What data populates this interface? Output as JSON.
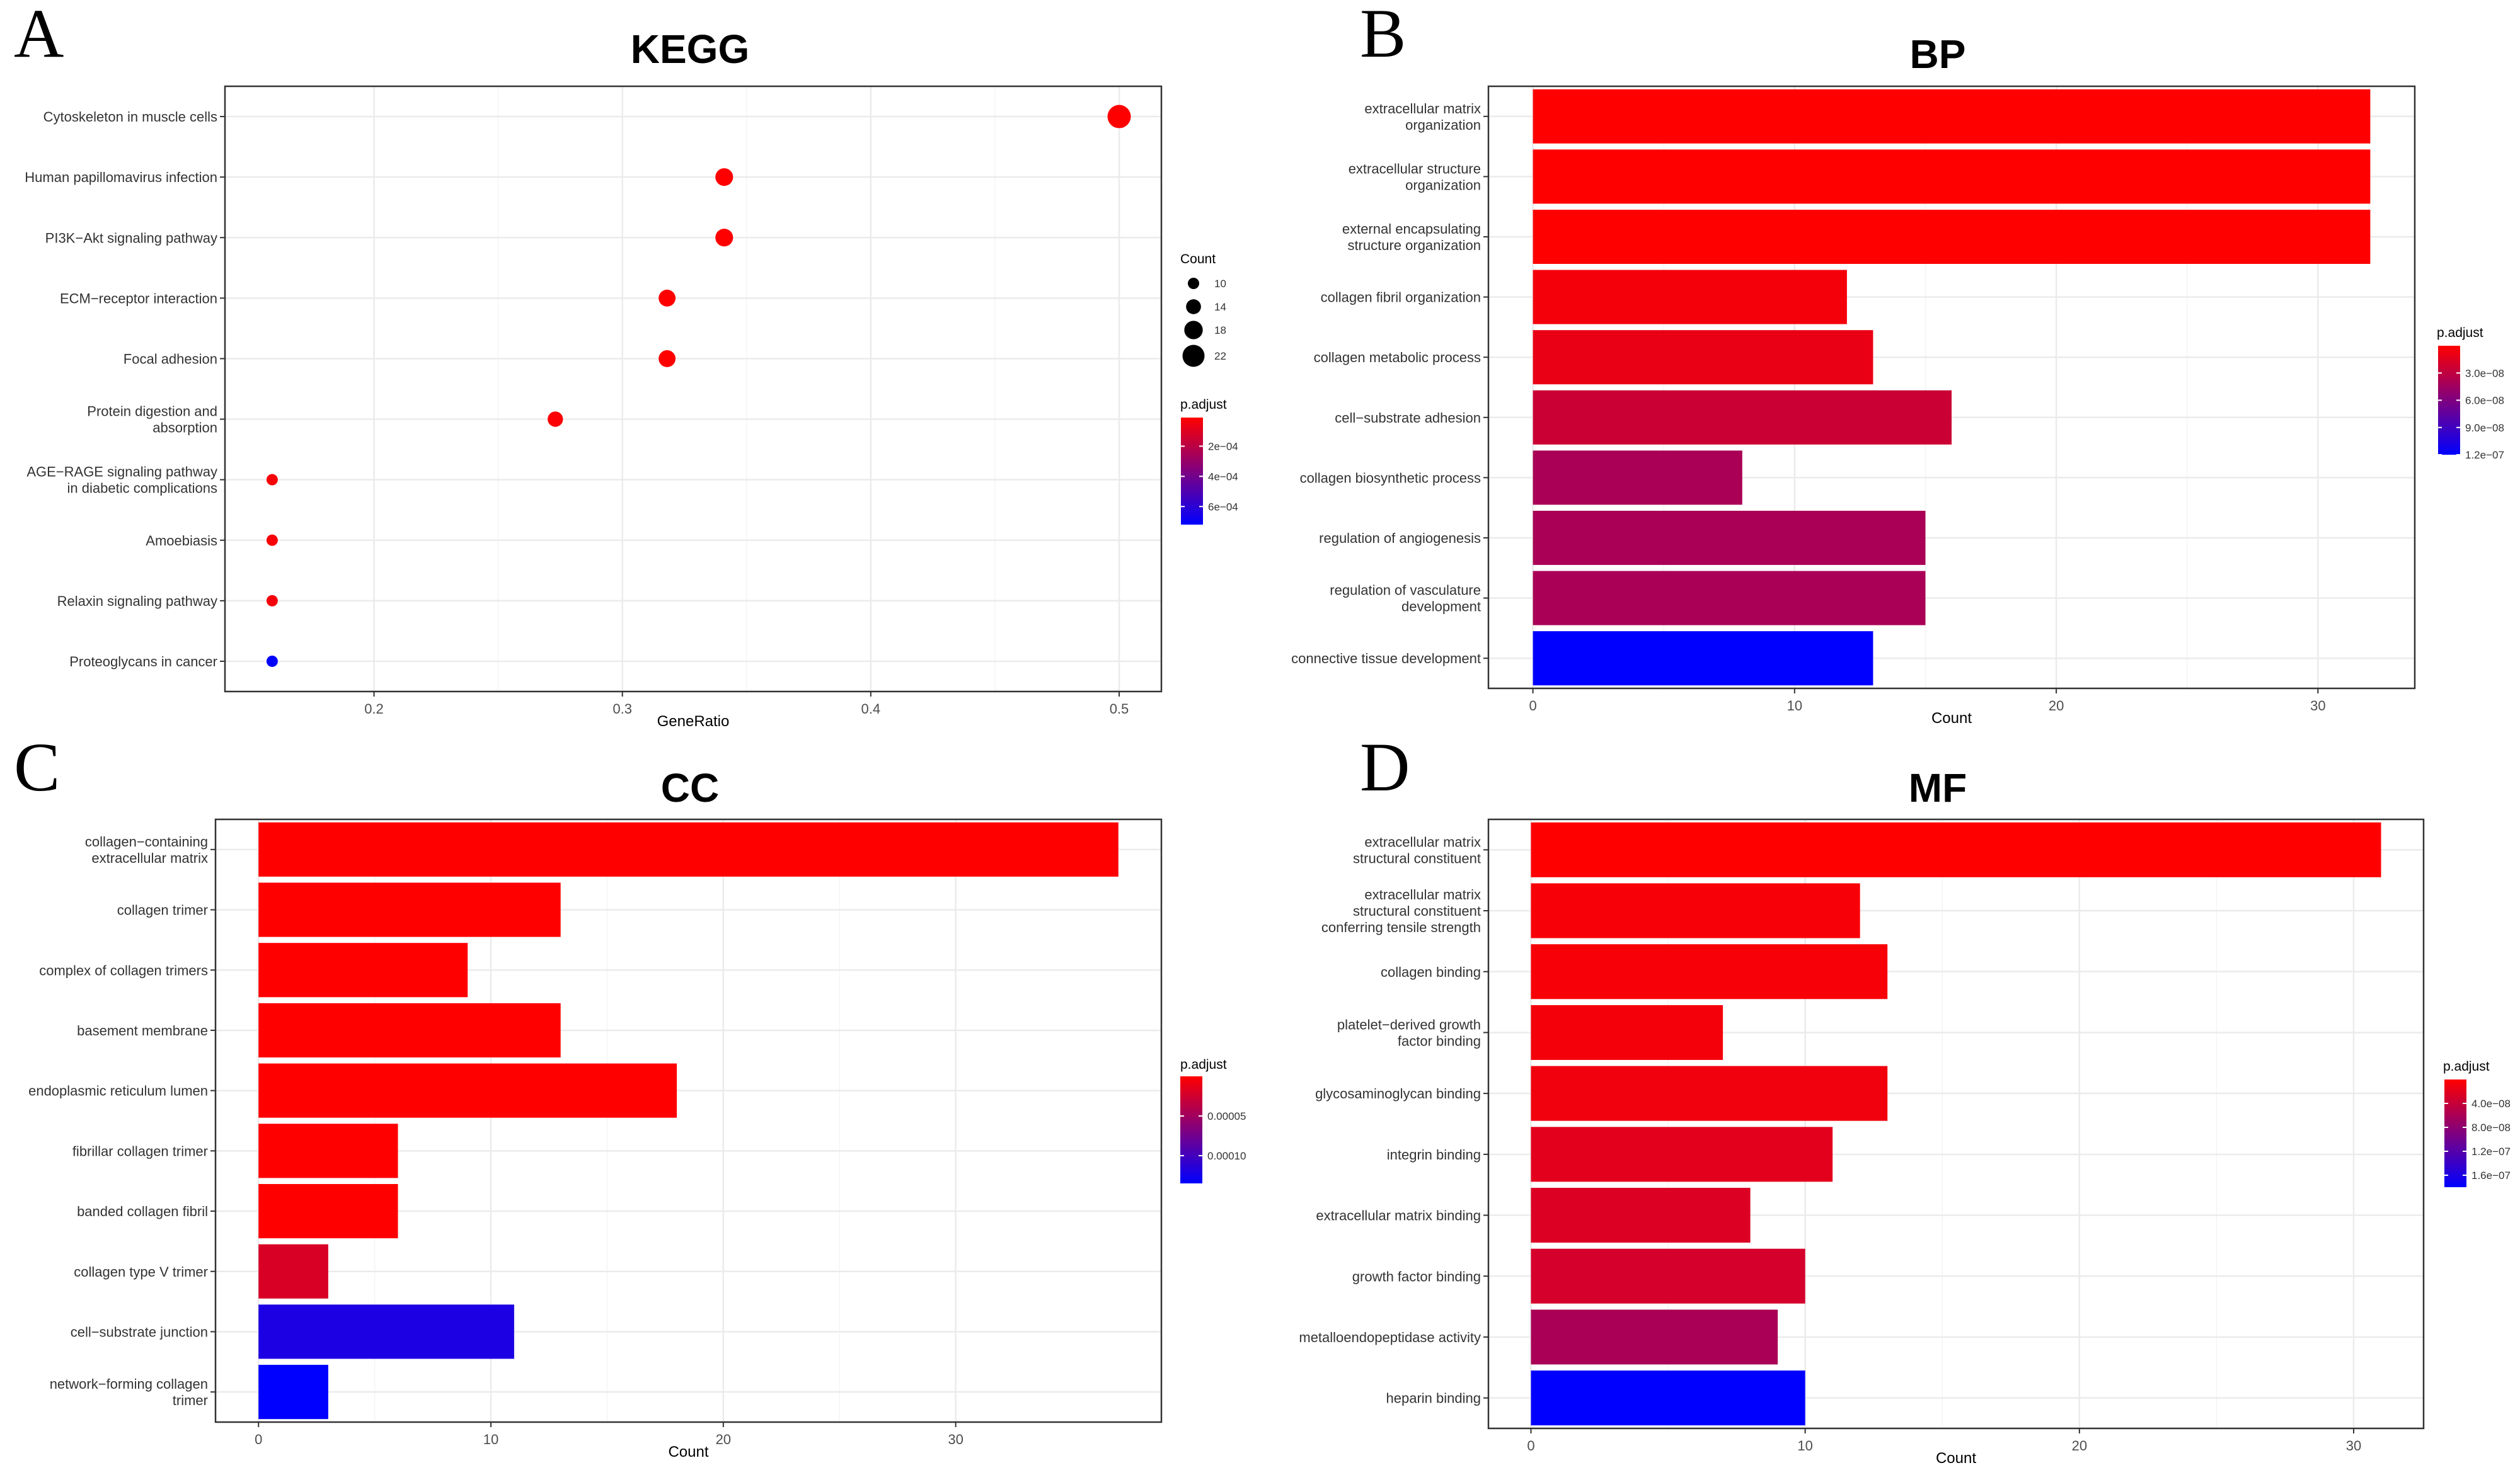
{
  "chart_data": [
    {
      "panel": "A",
      "type": "scatter",
      "title": "KEGG",
      "xlabel": "GeneRatio",
      "ylabel": "",
      "xlim": [
        0.14,
        0.517
      ],
      "xticks": [
        0.2,
        0.3,
        0.4,
        0.5
      ],
      "xtick_labels": [
        "0.2",
        "0.3",
        "0.4",
        "0.5"
      ],
      "grid": true,
      "categories": [
        "Cytoskeleton in muscle cells",
        "Human papillomavirus infection",
        "PI3K−Akt signaling pathway",
        "ECM−receptor interaction",
        "Focal adhesion",
        "Protein digestion and\nabsorption",
        "AGE−RAGE signaling pathway\nin diabetic complications",
        "Amoebiasis",
        "Relaxin signaling pathway",
        "Proteoglycans in cancer"
      ],
      "x": [
        0.5,
        0.341,
        0.341,
        0.318,
        0.318,
        0.273,
        0.159,
        0.159,
        0.159,
        0.159
      ],
      "count": [
        22,
        15,
        15,
        14,
        14,
        12,
        7,
        7,
        7,
        7
      ],
      "p_adjust": [
        1e-05,
        1e-05,
        1e-05,
        1e-05,
        1e-05,
        2e-05,
        3e-05,
        3e-05,
        4e-05,
        0.00072
      ],
      "size_legend": {
        "title": "Count",
        "values": [
          10,
          14,
          18,
          22
        ],
        "labels": [
          "10",
          "14",
          "18",
          "22"
        ]
      },
      "color_legend": {
        "title": "p.adjust",
        "min": 1e-05,
        "max": 0.00072,
        "ticks": [
          0.0002,
          0.0004,
          0.0006
        ],
        "labels": [
          "2e−04",
          "4e−04",
          "6e−04"
        ]
      }
    },
    {
      "panel": "B",
      "type": "bar",
      "title": "BP",
      "xlabel": "Count",
      "ylabel": "",
      "xlim": [
        -1.7,
        33.7
      ],
      "xticks": [
        0,
        10,
        20,
        30
      ],
      "xtick_labels": [
        "0",
        "10",
        "20",
        "30"
      ],
      "grid": true,
      "categories": [
        "extracellular matrix\norganization",
        "extracellular structure\norganization",
        "external encapsulating\nstructure organization",
        "collagen fibril organization",
        "collagen metabolic process",
        "cell−substrate adhesion",
        "collagen biosynthetic process",
        "regulation of angiogenesis",
        "regulation of vasculature\ndevelopment",
        "connective tissue development"
      ],
      "values": [
        32,
        32,
        32,
        12,
        13,
        16,
        8,
        15,
        15,
        13
      ],
      "p_adjust": [
        0.0,
        0.0,
        0.0,
        5e-09,
        1e-08,
        2.5e-08,
        4e-08,
        4e-08,
        4e-08,
        1.2e-07
      ],
      "color_legend": {
        "title": "p.adjust",
        "min": 0.0,
        "max": 1.2e-07,
        "ticks": [
          3e-08,
          6e-08,
          9e-08,
          1.2e-07
        ],
        "labels": [
          "3.0e−08",
          "6.0e−08",
          "9.0e−08",
          "1.2e−07"
        ]
      }
    },
    {
      "panel": "C",
      "type": "bar",
      "title": "CC",
      "xlabel": "Count",
      "ylabel": "",
      "xlim": [
        -1.85,
        38.85
      ],
      "xticks": [
        0,
        10,
        20,
        30
      ],
      "xtick_labels": [
        "0",
        "10",
        "20",
        "30"
      ],
      "grid": true,
      "categories": [
        "collagen−containing\nextracellular matrix",
        "collagen trimer",
        "complex of collagen trimers",
        "basement membrane",
        "endoplasmic reticulum lumen",
        "fibrillar collagen trimer",
        "banded collagen fibril",
        "collagen type V trimer",
        "cell−substrate junction",
        "network−forming collagen\ntrimer"
      ],
      "values": [
        37,
        13,
        9,
        13,
        18,
        6,
        6,
        3,
        11,
        3
      ],
      "p_adjust": [
        0.0,
        0.0,
        0.0,
        0.0,
        0.0,
        0.0,
        0.0,
        2e-05,
        0.00012,
        0.000135
      ],
      "color_legend": {
        "title": "p.adjust",
        "min": 0.0,
        "max": 0.000135,
        "ticks": [
          5e-05,
          0.0001
        ],
        "labels": [
          "0.00005",
          "0.00010"
        ]
      }
    },
    {
      "panel": "D",
      "type": "bar",
      "title": "MF",
      "xlabel": "Count",
      "ylabel": "",
      "xlim": [
        -1.55,
        32.55
      ],
      "xticks": [
        0,
        10,
        20,
        30
      ],
      "xtick_labels": [
        "0",
        "10",
        "20",
        "30"
      ],
      "grid": true,
      "categories": [
        "extracellular matrix\nstructural constituent",
        "extracellular matrix\nstructural constituent\nconferring tensile strength",
        "collagen binding",
        "platelet−derived growth\nfactor binding",
        "glycosaminoglycan binding",
        "integrin binding",
        "extracellular matrix binding",
        "growth factor binding",
        "metalloendopeptidase activity",
        "heparin binding"
      ],
      "values": [
        31,
        12,
        13,
        7,
        13,
        11,
        8,
        10,
        9,
        10
      ],
      "p_adjust": [
        0.0,
        5e-09,
        5e-09,
        8e-09,
        1e-08,
        2e-08,
        2.5e-08,
        3e-08,
        6e-08,
        1.8e-07
      ],
      "color_legend": {
        "title": "p.adjust",
        "min": 0.0,
        "max": 1.8e-07,
        "ticks": [
          4e-08,
          8e-08,
          1.2e-07,
          1.6e-07
        ],
        "labels": [
          "4.0e−08",
          "8.0e−08",
          "1.2e−07",
          "1.6e−07"
        ]
      }
    }
  ],
  "colors": {
    "low_p": "#ff0000",
    "high_p": "#0000ff",
    "grid": "#ebebeb",
    "frame": "#333333"
  }
}
